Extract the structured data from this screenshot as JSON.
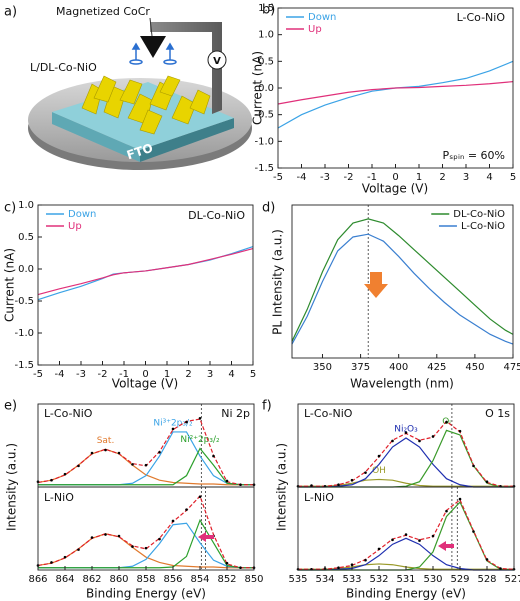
{
  "illustration": {
    "panel": "a)",
    "tip_label": "Magnetized CoCr",
    "sample_label": "L/DL-Co-NiO",
    "substrate_label": "FTO",
    "meter_label": "V"
  },
  "chart_data": [
    {
      "type": "line",
      "panel": "b)",
      "title": "L-Co-NiO",
      "note": "Pₛₚᵢₙ = 60%",
      "xlabel": "Voltage (V)",
      "ylabel": "Current (nA)",
      "x": [
        -5,
        -4,
        -3,
        -2,
        -1,
        0,
        1,
        2,
        3,
        4,
        5
      ],
      "series": [
        {
          "name": "Down",
          "color": "#3ba3e6",
          "values": [
            -0.75,
            -0.5,
            -0.32,
            -0.18,
            -0.06,
            0,
            0.03,
            0.1,
            0.18,
            0.32,
            0.5
          ]
        },
        {
          "name": "Up",
          "color": "#e0307a",
          "values": [
            -0.3,
            -0.22,
            -0.15,
            -0.08,
            -0.03,
            0,
            0.01,
            0.03,
            0.05,
            0.08,
            0.12
          ]
        }
      ],
      "xlim": [
        -5,
        5
      ],
      "ylim": [
        -1.5,
        1.5
      ],
      "xticks": [
        -5,
        -4,
        -3,
        -2,
        -1,
        0,
        1,
        2,
        3,
        4,
        5
      ],
      "yticks": [
        -1.5,
        {
          "value": -1,
          "label": "-1.0"
        },
        -0.5,
        {
          "value": 0,
          "label": "0.0"
        },
        0.5,
        {
          "value": 1,
          "label": "1.0"
        },
        1.5
      ],
      "legend": "upper left"
    },
    {
      "type": "line",
      "panel": "c)",
      "title": "DL-Co-NiO",
      "xlabel": "Voltage (V)",
      "ylabel": "Current (nA)",
      "x": [
        -5,
        -4,
        -3,
        -2,
        -1.5,
        -1,
        0,
        1,
        2,
        3,
        4,
        5
      ],
      "series": [
        {
          "name": "Down",
          "color": "#3ba3e6",
          "values": [
            -0.48,
            -0.37,
            -0.27,
            -0.15,
            -0.08,
            -0.06,
            -0.03,
            0.02,
            0.07,
            0.14,
            0.24,
            0.35
          ]
        },
        {
          "name": "Up",
          "color": "#e0307a",
          "values": [
            -0.4,
            -0.31,
            -0.23,
            -0.14,
            -0.09,
            -0.06,
            -0.03,
            0.02,
            0.07,
            0.15,
            0.23,
            0.32
          ]
        }
      ],
      "xlim": [
        -5,
        5
      ],
      "ylim": [
        -1.5,
        1
      ],
      "xticks": [
        -5,
        -4,
        -3,
        -2,
        -1,
        0,
        1,
        2,
        3,
        4,
        5
      ],
      "yticks": [
        -1.5,
        {
          "value": -1,
          "label": "-1.0"
        },
        -0.5,
        {
          "value": 0,
          "label": "0.0"
        },
        0.5,
        {
          "value": 1,
          "label": "1.0"
        }
      ],
      "legend": "upper left"
    },
    {
      "type": "line",
      "panel": "d)",
      "xlabel": "Wavelength (nm)",
      "ylabel": "PL Intensity (a.u.)",
      "x": [
        330,
        340,
        350,
        360,
        370,
        380,
        390,
        400,
        410,
        420,
        430,
        440,
        450,
        460,
        470,
        475
      ],
      "series": [
        {
          "name": "DL-Co-NiO",
          "color": "#2e8b2e",
          "values": [
            0.12,
            0.35,
            0.62,
            0.85,
            0.97,
            1.0,
            0.97,
            0.88,
            0.78,
            0.68,
            0.58,
            0.48,
            0.38,
            0.28,
            0.2,
            0.17
          ]
        },
        {
          "name": "L-Co-NiO",
          "color": "#3a7fd0",
          "values": [
            0.1,
            0.3,
            0.55,
            0.77,
            0.87,
            0.89,
            0.84,
            0.73,
            0.61,
            0.5,
            0.4,
            0.31,
            0.24,
            0.17,
            0.12,
            0.1
          ]
        }
      ],
      "xlim": [
        330,
        475
      ],
      "ylim": [
        0,
        1.1
      ],
      "xticks": [
        350,
        375,
        400,
        425,
        450,
        475
      ],
      "vlines": [
        380
      ],
      "legend": "upper right"
    },
    {
      "type": "line",
      "panel": "e)",
      "title": "L-Co-NiO",
      "subtitle": "Ni 2p",
      "ylabel": "Intensity (a.u.)",
      "x": [
        866,
        865,
        864,
        863,
        862,
        861,
        860,
        859,
        858,
        857,
        856,
        855,
        854,
        853,
        852,
        851,
        850
      ],
      "series": [
        {
          "label": "Sat.",
          "color": "#e07a2e",
          "values": [
            0.06,
            0.09,
            0.16,
            0.29,
            0.44,
            0.5,
            0.44,
            0.29,
            0.16,
            0.09,
            0.06,
            0.05,
            0.04,
            0.04,
            0.03,
            0.03,
            0.03
          ]
        },
        {
          "label": "Ni³⁺2p₃/₂",
          "color": "#3ba3e6",
          "values": [
            0.03,
            0.03,
            0.03,
            0.03,
            0.03,
            0.03,
            0.03,
            0.05,
            0.15,
            0.41,
            0.73,
            0.73,
            0.41,
            0.15,
            0.05,
            0.03,
            0.03
          ]
        },
        {
          "label": "Ni²⁺2p₃/₂",
          "color": "#2ca02c",
          "values": [
            0.03,
            0.03,
            0.03,
            0.03,
            0.03,
            0.03,
            0.03,
            0.03,
            0.03,
            0.03,
            0.03,
            0.15,
            0.51,
            0.29,
            0.05,
            0.03,
            0.03
          ]
        },
        {
          "color": "#e0202a",
          "style": "dashed",
          "values": [
            0.06,
            0.09,
            0.16,
            0.29,
            0.44,
            0.5,
            0.44,
            0.31,
            0.28,
            0.47,
            0.76,
            0.87,
            0.9,
            0.42,
            0.07,
            0.03,
            0.03
          ]
        },
        {
          "color": "#000000",
          "style": "dots",
          "values": [
            0.07,
            0.09,
            0.17,
            0.28,
            0.45,
            0.49,
            0.45,
            0.3,
            0.29,
            0.46,
            0.77,
            0.86,
            0.91,
            0.41,
            0.08,
            0.03,
            0.03
          ]
        }
      ],
      "xlim": [
        866,
        850
      ],
      "ylim": [
        0,
        1.1
      ],
      "vlines": [
        853.9
      ]
    },
    {
      "type": "line",
      "title": "L-NiO",
      "xlabel": "Binding Energy (eV)",
      "x": [
        866,
        865,
        864,
        863,
        862,
        861,
        860,
        859,
        858,
        857,
        856,
        855,
        854,
        853,
        852,
        851,
        850
      ],
      "series": [
        {
          "color": "#e07a2e",
          "values": [
            0.06,
            0.09,
            0.16,
            0.28,
            0.42,
            0.48,
            0.44,
            0.3,
            0.17,
            0.1,
            0.06,
            0.05,
            0.04,
            0.04,
            0.03,
            0.03,
            0.03
          ]
        },
        {
          "color": "#3ba3e6",
          "values": [
            0.03,
            0.03,
            0.03,
            0.03,
            0.03,
            0.03,
            0.03,
            0.05,
            0.14,
            0.35,
            0.6,
            0.62,
            0.36,
            0.13,
            0.05,
            0.03,
            0.03
          ]
        },
        {
          "color": "#2ca02c",
          "values": [
            0.03,
            0.03,
            0.03,
            0.03,
            0.03,
            0.03,
            0.03,
            0.03,
            0.03,
            0.03,
            0.04,
            0.18,
            0.66,
            0.36,
            0.06,
            0.03,
            0.03
          ]
        },
        {
          "color": "#e0202a",
          "style": "dashed",
          "values": [
            0.06,
            0.09,
            0.16,
            0.28,
            0.42,
            0.48,
            0.44,
            0.32,
            0.28,
            0.42,
            0.64,
            0.79,
            0.98,
            0.47,
            0.08,
            0.03,
            0.03
          ]
        },
        {
          "color": "#000000",
          "style": "dots",
          "values": [
            0.06,
            0.1,
            0.17,
            0.27,
            0.43,
            0.47,
            0.45,
            0.31,
            0.29,
            0.41,
            0.65,
            0.8,
            0.97,
            0.45,
            0.09,
            0.03,
            0.03
          ]
        }
      ],
      "xlim": [
        866,
        850
      ],
      "ylim": [
        0,
        1.1
      ],
      "xticks": [
        866,
        864,
        862,
        860,
        858,
        856,
        854,
        852,
        850
      ],
      "vlines": [
        853.9,
        853.6
      ]
    },
    {
      "type": "line",
      "panel": "f)",
      "title": "L-Co-NiO",
      "subtitle": "O 1s",
      "ylabel": "Intensity (a.u.)",
      "x": [
        535,
        534.5,
        534,
        533.5,
        533,
        532.5,
        532,
        531.5,
        531,
        530.5,
        530,
        529.5,
        529,
        528.5,
        528,
        527.5,
        527
      ],
      "series": [
        {
          "label": "OH",
          "color": "#9a9a2a",
          "values": [
            0.01,
            0.01,
            0.01,
            0.02,
            0.05,
            0.09,
            0.1,
            0.09,
            0.05,
            0.02,
            0.01,
            0.01,
            0.01,
            0.01,
            0.01,
            0.01,
            0.01
          ]
        },
        {
          "label": "Ni₂O₃",
          "color": "#1f2fb0",
          "values": [
            0,
            0,
            0,
            0.01,
            0.03,
            0.11,
            0.3,
            0.53,
            0.65,
            0.53,
            0.3,
            0.11,
            0.03,
            0,
            0,
            0,
            0
          ]
        },
        {
          "label": "Oₗ",
          "color": "#3a9a2a",
          "values": [
            0,
            0,
            0,
            0,
            0,
            0,
            0,
            0,
            0.01,
            0.07,
            0.35,
            0.75,
            0.69,
            0.28,
            0.05,
            0,
            0
          ]
        },
        {
          "color": "#e0202a",
          "style": "dashed",
          "values": [
            0.01,
            0.01,
            0.01,
            0.03,
            0.08,
            0.2,
            0.4,
            0.62,
            0.71,
            0.62,
            0.66,
            0.87,
            0.73,
            0.29,
            0.06,
            0.01,
            0.01
          ]
        },
        {
          "color": "#000000",
          "style": "dots",
          "values": [
            0.01,
            0.02,
            0.01,
            0.03,
            0.09,
            0.19,
            0.41,
            0.61,
            0.72,
            0.61,
            0.67,
            0.86,
            0.74,
            0.28,
            0.07,
            0.01,
            0.01
          ]
        }
      ],
      "xlim": [
        535,
        527
      ],
      "ylim": [
        0,
        1.1
      ],
      "vlines": [
        529.3
      ]
    },
    {
      "type": "line",
      "title": "L-NiO",
      "xlabel": "Binding Energy (eV)",
      "x": [
        535,
        534.5,
        534,
        533.5,
        533,
        532.5,
        532,
        531.5,
        531,
        530.5,
        530,
        529.5,
        529,
        528.5,
        528,
        527.5,
        527
      ],
      "series": [
        {
          "color": "#9a9a2a",
          "values": [
            0.01,
            0.01,
            0.01,
            0.02,
            0.04,
            0.07,
            0.08,
            0.07,
            0.04,
            0.02,
            0.01,
            0.01,
            0.01,
            0.01,
            0.01,
            0.01,
            0.01
          ]
        },
        {
          "color": "#1f2fb0",
          "values": [
            0,
            0,
            0,
            0.01,
            0.02,
            0.07,
            0.19,
            0.34,
            0.42,
            0.34,
            0.19,
            0.07,
            0.02,
            0,
            0,
            0,
            0
          ]
        },
        {
          "color": "#3a9a2a",
          "values": [
            0,
            0,
            0,
            0,
            0,
            0,
            0,
            0,
            0,
            0.04,
            0.24,
            0.71,
            0.9,
            0.51,
            0.12,
            0.01,
            0
          ]
        },
        {
          "color": "#e0202a",
          "style": "dashed",
          "values": [
            0.01,
            0.01,
            0.01,
            0.03,
            0.06,
            0.14,
            0.27,
            0.41,
            0.46,
            0.4,
            0.44,
            0.79,
            0.93,
            0.52,
            0.13,
            0.02,
            0.01
          ]
        },
        {
          "color": "#000000",
          "style": "dots",
          "values": [
            0.01,
            0.01,
            0.02,
            0.03,
            0.07,
            0.13,
            0.28,
            0.4,
            0.47,
            0.39,
            0.45,
            0.78,
            0.94,
            0.51,
            0.14,
            0.02,
            0.01
          ]
        }
      ],
      "xlim": [
        535,
        527
      ],
      "ylim": [
        0,
        1.1
      ],
      "xticks": [
        535,
        534,
        533,
        532,
        531,
        530,
        529,
        528,
        527
      ],
      "vlines": [
        529.3,
        529.1
      ]
    }
  ]
}
